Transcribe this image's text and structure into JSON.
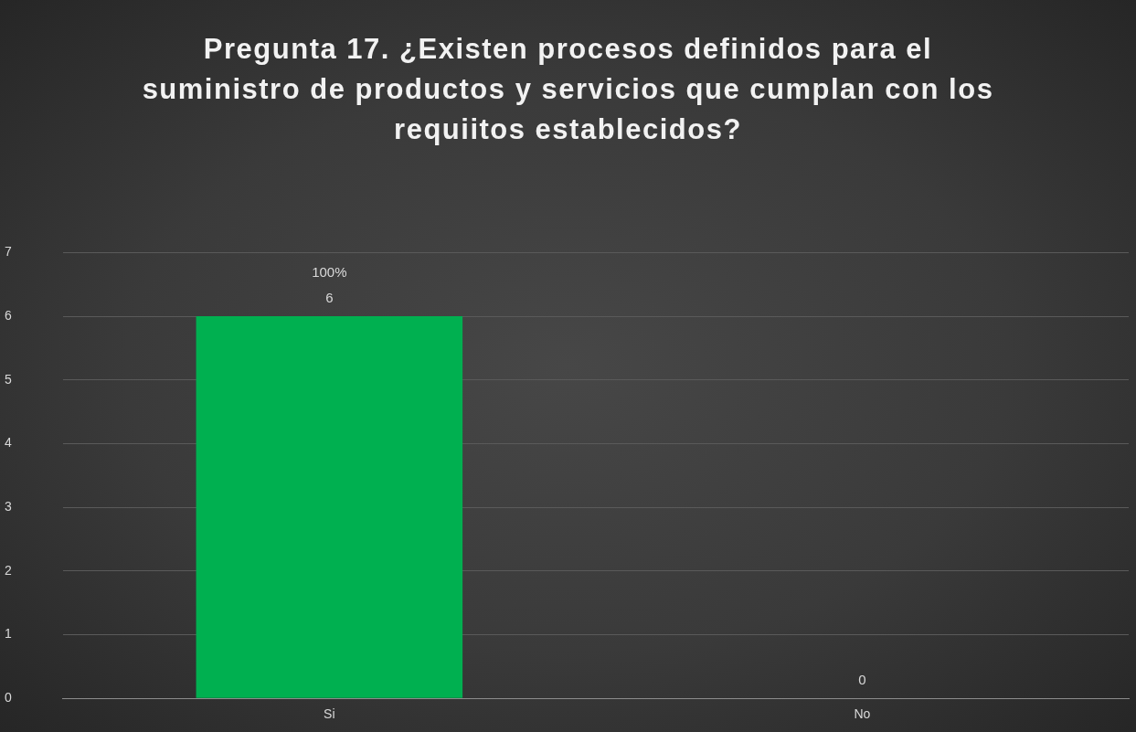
{
  "chart_data": {
    "type": "bar",
    "title": "Pregunta 17. ¿Existen procesos definidos para el suministro de productos y servicios que cumplan con los requiitos establecidos?",
    "categories": [
      "Si",
      "No"
    ],
    "values": [
      6,
      0
    ],
    "color": "#00b050",
    "ylim": [
      0,
      7
    ],
    "yticks": [
      0,
      1,
      2,
      3,
      4,
      5,
      6,
      7
    ],
    "grid": "y",
    "data_labels": true,
    "annotations": [
      {
        "text": "100%",
        "x": "Si",
        "y": 6
      }
    ]
  }
}
